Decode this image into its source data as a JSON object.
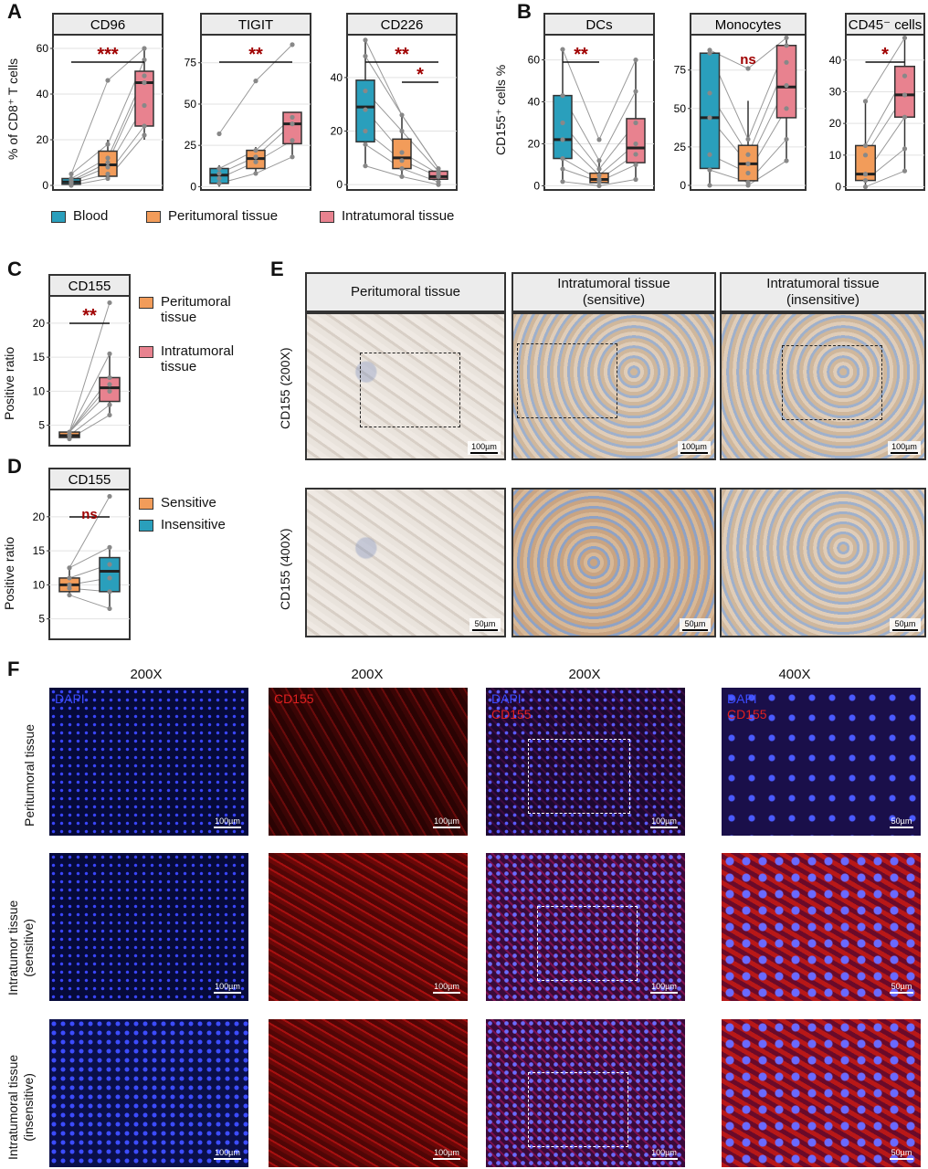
{
  "panels": {
    "A": "A",
    "B": "B",
    "C": "C",
    "D": "D",
    "E": "E",
    "F": "F"
  },
  "colors": {
    "blood": "#2a9fbc",
    "peritumoral": "#f29c5a",
    "intratumoral": "#e8828f",
    "sig": "#a00000"
  },
  "panelA": {
    "ylabel": "% of CD8⁺ T cells",
    "legend": [
      "Blood",
      "Peritumoral tissue",
      "Intratumoral tissue"
    ]
  },
  "panelB": {
    "ylabel": "CD155⁺ cells %"
  },
  "panelC": {
    "ylabel": "Positive ratio",
    "legend": [
      "Peritumoral tissue",
      "Intratumoral tissue"
    ]
  },
  "panelD": {
    "ylabel": "Positive ratio",
    "legend": [
      "Sensitive",
      "Insensitive"
    ]
  },
  "chart_data": [
    {
      "id": "A-CD96",
      "type": "box",
      "title": "CD96",
      "ylim": [
        -2,
        66
      ],
      "ticks": [
        0,
        20,
        40,
        60
      ],
      "groups": [
        {
          "name": "Blood",
          "q1": 0.5,
          "median": 1.5,
          "q3": 3,
          "lo": 0,
          "hi": 5,
          "points": [
            0,
            1,
            1.5,
            2,
            3,
            5
          ]
        },
        {
          "name": "Peritumoral tissue",
          "q1": 4,
          "median": 9,
          "q3": 15,
          "lo": 2,
          "hi": 20,
          "points": [
            3,
            5,
            8,
            10,
            12,
            18,
            46
          ]
        },
        {
          "name": "Intratumoral tissue",
          "q1": 26,
          "median": 45,
          "q3": 50,
          "lo": 20,
          "hi": 60,
          "points": [
            22,
            26,
            35,
            45,
            48,
            55,
            60
          ]
        }
      ],
      "sig": [
        {
          "label": "***",
          "from": 0,
          "to": 2
        }
      ]
    },
    {
      "id": "A-TIGIT",
      "type": "box",
      "title": "TIGIT",
      "ylim": [
        -2,
        92
      ],
      "ticks": [
        0,
        25,
        50,
        75
      ],
      "groups": [
        {
          "name": "Blood",
          "q1": 2,
          "median": 7,
          "q3": 11,
          "lo": 0,
          "hi": 13,
          "points": [
            2,
            5,
            8,
            11,
            32
          ]
        },
        {
          "name": "Peritumoral tissue",
          "q1": 11,
          "median": 17,
          "q3": 22,
          "lo": 7,
          "hi": 24,
          "points": [
            8,
            15,
            18,
            22,
            64
          ]
        },
        {
          "name": "Intratumoral tissue",
          "q1": 26,
          "median": 38,
          "q3": 45,
          "lo": 17,
          "hi": 45,
          "points": [
            18,
            28,
            38,
            42,
            86
          ]
        }
      ],
      "sig": [
        {
          "label": "**",
          "from": 0,
          "to": 2
        }
      ]
    },
    {
      "id": "A-CD226",
      "type": "box",
      "title": "CD226",
      "ylim": [
        -2,
        56
      ],
      "ticks": [
        0,
        20,
        40
      ],
      "groups": [
        {
          "name": "Blood",
          "q1": 16,
          "median": 29,
          "q3": 39,
          "lo": 7,
          "hi": 54,
          "points": [
            7,
            15,
            20,
            28,
            35,
            48,
            54
          ]
        },
        {
          "name": "Peritumoral tissue",
          "q1": 6,
          "median": 10,
          "q3": 17,
          "lo": 3,
          "hi": 26,
          "points": [
            3,
            6,
            9,
            12,
            20,
            26
          ]
        },
        {
          "name": "Intratumoral tissue",
          "q1": 2,
          "median": 3,
          "q3": 5,
          "lo": 0,
          "hi": 6,
          "points": [
            0,
            1,
            3,
            4,
            5,
            6
          ]
        }
      ],
      "sig": [
        {
          "label": "**",
          "from": 0,
          "to": 2
        },
        {
          "label": "*",
          "from": 1,
          "to": 2
        }
      ]
    },
    {
      "id": "B-DCs",
      "type": "box",
      "title": "DCs",
      "ylim": [
        -2,
        72
      ],
      "ticks": [
        0,
        20,
        40,
        60
      ],
      "groups": [
        {
          "name": "Blood",
          "q1": 13,
          "median": 22,
          "q3": 43,
          "lo": 2,
          "hi": 65,
          "points": [
            2,
            8,
            13,
            22,
            30,
            43,
            65
          ]
        },
        {
          "name": "Peritumoral tissue",
          "q1": 1.5,
          "median": 3,
          "q3": 6,
          "lo": 0,
          "hi": 12,
          "points": [
            0,
            2,
            3,
            5,
            8,
            12,
            22
          ]
        },
        {
          "name": "Intratumoral tissue",
          "q1": 11,
          "median": 18,
          "q3": 32,
          "lo": 3,
          "hi": 60,
          "points": [
            3,
            10,
            15,
            20,
            30,
            45,
            60
          ]
        }
      ],
      "sig": [
        {
          "label": "**",
          "from": 0,
          "to": 1
        }
      ]
    },
    {
      "id": "B-Monocytes",
      "type": "box",
      "title": "Monocytes",
      "ylim": [
        -3,
        98
      ],
      "ticks": [
        0,
        25,
        50,
        75
      ],
      "groups": [
        {
          "name": "Blood",
          "q1": 11,
          "median": 44,
          "q3": 86,
          "lo": 0,
          "hi": 88,
          "points": [
            0,
            10,
            20,
            44,
            60,
            86,
            88
          ]
        },
        {
          "name": "Peritumoral tissue",
          "q1": 3,
          "median": 14,
          "q3": 26,
          "lo": 0,
          "hi": 55,
          "points": [
            0,
            2,
            8,
            14,
            20,
            30,
            76
          ]
        },
        {
          "name": "Intratumoral tissue",
          "q1": 44,
          "median": 64,
          "q3": 91,
          "lo": 16,
          "hi": 96,
          "points": [
            16,
            30,
            50,
            65,
            80,
            91,
            96
          ]
        }
      ],
      "sig": [
        {
          "label": "ns",
          "from": 1,
          "to": 1
        }
      ]
    },
    {
      "id": "B-CD45neg",
      "type": "box",
      "title": "CD45⁻ cells",
      "ylim": [
        -1,
        48
      ],
      "ticks": [
        0,
        10,
        20,
        30,
        40
      ],
      "groups": [
        {
          "name": "Peritumoral tissue",
          "q1": 2,
          "median": 4,
          "q3": 13,
          "lo": 0,
          "hi": 27,
          "points": [
            0,
            2,
            4,
            10,
            13,
            27
          ]
        },
        {
          "name": "Intratumoral tissue",
          "q1": 22,
          "median": 29,
          "q3": 38,
          "lo": 5,
          "hi": 47,
          "points": [
            5,
            12,
            22,
            29,
            35,
            47
          ]
        }
      ],
      "sig": [
        {
          "label": "*",
          "from": 0,
          "to": 1
        }
      ]
    },
    {
      "id": "C-CD155",
      "type": "box",
      "title": "CD155",
      "ylim": [
        2,
        24
      ],
      "ticks": [
        5,
        10,
        15,
        20
      ],
      "groups": [
        {
          "name": "Peritumoral tissue",
          "q1": 3.2,
          "median": 3.5,
          "q3": 4,
          "lo": 3,
          "hi": 4,
          "points": [
            3,
            3.5,
            4
          ]
        },
        {
          "name": "Intratumoral tissue",
          "q1": 8.5,
          "median": 10.5,
          "q3": 12,
          "lo": 6.5,
          "hi": 15.5,
          "points": [
            6.5,
            8,
            10,
            11,
            12,
            15.5,
            23
          ]
        }
      ],
      "sig": [
        {
          "label": "**",
          "from": 0,
          "to": 1
        }
      ]
    },
    {
      "id": "D-CD155",
      "type": "box",
      "title": "CD155",
      "ylim": [
        2,
        24
      ],
      "ticks": [
        5,
        10,
        15,
        20
      ],
      "groups": [
        {
          "name": "Sensitive",
          "q1": 9,
          "median": 10,
          "q3": 11,
          "lo": 8.5,
          "hi": 12.5,
          "points": [
            8.5,
            9.5,
            10,
            11,
            12.5
          ]
        },
        {
          "name": "Insensitive",
          "q1": 9,
          "median": 12,
          "q3": 14,
          "lo": 6.5,
          "hi": 15.5,
          "points": [
            6.5,
            9,
            11,
            13,
            15.5,
            23
          ]
        }
      ],
      "sig": [
        {
          "label": "ns",
          "from": 0,
          "to": 1
        }
      ]
    }
  ],
  "panelE": {
    "cols": [
      "Peritumoral tissue",
      "Intratumoral tissue\n(sensitive)",
      "Intratumoral tissue\n(insensitive)"
    ],
    "rows": [
      "CD155 (200X)",
      "CD155 (400X)"
    ],
    "scale200": "100µm",
    "scale400": "50µm"
  },
  "panelF": {
    "cols": [
      "200X",
      "200X",
      "200X",
      "400X"
    ],
    "rows": [
      "Peritumoral tissue",
      "Intratumor tissue\n(sensitive)",
      "Intratumoral tissue\n(insensitive)"
    ],
    "dapi": "DAPI",
    "cd155": "CD155",
    "scale200": "100µm",
    "scale400": "50µm"
  }
}
